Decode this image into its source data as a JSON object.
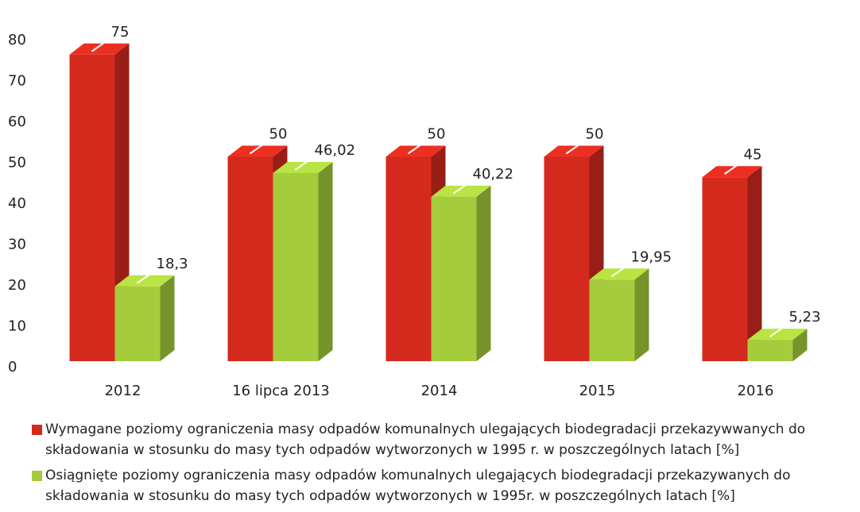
{
  "chart_data": {
    "type": "bar3d",
    "categories": [
      "2012",
      "16 lipca 2013",
      "2014",
      "2015",
      "2016"
    ],
    "series": [
      {
        "name": "Wymagane poziomy ograniczenia masy odpadów komunalnych ulegających biodegradacji przekazywwanych do składowania w stosunku do masy tych odpadów wytworzonych w 1995 r. w poszczególnych latach [%]",
        "color": "#d42a1e",
        "values": [
          75,
          50,
          50,
          50,
          45
        ]
      },
      {
        "name": "Osiągnięte poziomy ograniczenia masy odpadów komunalnych ulegających biodegradacji przekazywanych do składowania w stosunku do masy tych odpadów wytworzonych w 1995r. w poszczególnych latach [%]",
        "color": "#a5cc3c",
        "values": [
          18.3,
          46.02,
          40.22,
          19.95,
          5.23
        ],
        "value_labels": [
          "18,3",
          "46,02",
          "40,22",
          "19,95",
          "5,23"
        ]
      }
    ],
    "ylim": [
      0,
      80
    ],
    "yticks": [
      0,
      10,
      20,
      30,
      40,
      50,
      60,
      70,
      80
    ]
  }
}
